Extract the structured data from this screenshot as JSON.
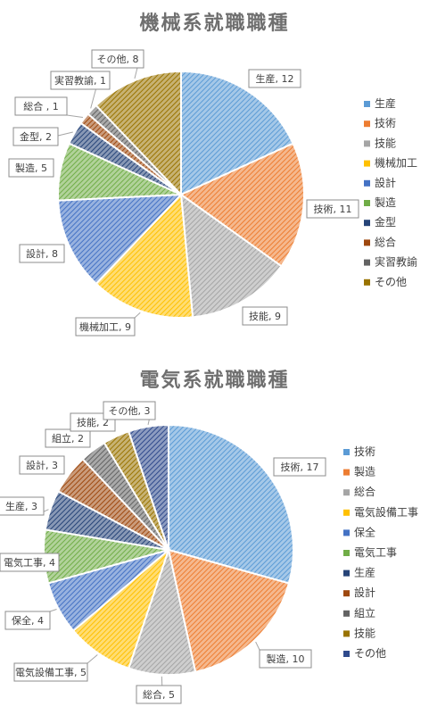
{
  "chart_data": [
    {
      "type": "pie",
      "title": "機械系就職職種",
      "categories": [
        "生産",
        "技術",
        "技能",
        "機械加工",
        "設計",
        "製造",
        "金型",
        "総合",
        "実習教諭",
        "その他"
      ],
      "values": [
        12,
        11,
        9,
        9,
        8,
        5,
        2,
        1,
        1,
        8
      ],
      "data_labels": [
        "生産, 12",
        "技術, 11",
        "技能, 9",
        "機械加工, 9",
        "設計, 8",
        "製造, 5",
        "金型, 2",
        "総合 , 1",
        "実習教諭, 1",
        "その他, 8"
      ],
      "colors": [
        "#5b9bd5",
        "#ed7d31",
        "#a5a5a5",
        "#ffc000",
        "#4472c4",
        "#70ad47",
        "#264478",
        "#9e480e",
        "#636363",
        "#997300"
      ],
      "legend": "right",
      "pattern": "diagonal-stripes"
    },
    {
      "type": "pie",
      "title": "電気系就職職種",
      "categories": [
        "技術",
        "製造",
        "総合",
        "電気設備工事",
        "保全",
        "電気工事",
        "生産",
        "設計",
        "組立",
        "技能",
        "その他"
      ],
      "values": [
        17,
        10,
        5,
        5,
        4,
        4,
        3,
        3,
        2,
        2,
        3
      ],
      "data_labels": [
        "技術, 17",
        "製造, 10",
        "総合, 5",
        "電気設備工事, 5",
        "保全, 4",
        "電気工事, 4",
        "生産, 3",
        "設計, 3",
        "組立, 2",
        "技能, 2",
        "その他, 3"
      ],
      "colors": [
        "#5b9bd5",
        "#ed7d31",
        "#a5a5a5",
        "#ffc000",
        "#4472c4",
        "#70ad47",
        "#264478",
        "#9e480e",
        "#636363",
        "#997300",
        "#2f4a8c"
      ],
      "legend": "right",
      "pattern": "diagonal-stripes"
    }
  ]
}
